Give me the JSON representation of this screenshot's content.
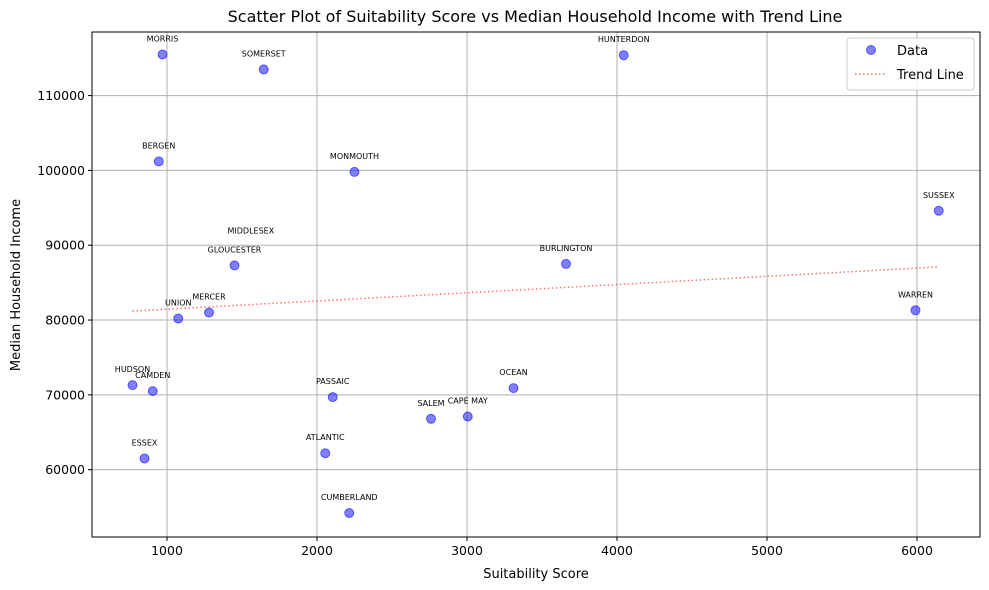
{
  "chart_data": {
    "type": "scatter",
    "title": "Scatter Plot of Suitability Score vs Median Household Income with Trend Line",
    "xlabel": "Suitability Score",
    "ylabel": "Median Household Income",
    "xlim": [
      500,
      6420
    ],
    "ylim": [
      51000,
      118500
    ],
    "xticks": [
      1000,
      2000,
      3000,
      4000,
      5000,
      6000
    ],
    "yticks": [
      60000,
      70000,
      80000,
      90000,
      100000,
      110000
    ],
    "grid": true,
    "legend": {
      "placement": "top-right",
      "entries": [
        {
          "label": "Data",
          "kind": "marker",
          "color": "#0000ff"
        },
        {
          "label": "Trend Line",
          "kind": "dotted-line",
          "color": "#ff0000"
        }
      ]
    },
    "series": [
      {
        "name": "Data",
        "color": "#0000ff",
        "points": [
          {
            "label": "MORRIS",
            "x": 970,
            "y": 115500
          },
          {
            "label": "SOMERSET",
            "x": 1645,
            "y": 113500
          },
          {
            "label": "HUNTERDON",
            "x": 4045,
            "y": 115400
          },
          {
            "label": "BERGEN",
            "x": 945,
            "y": 101200
          },
          {
            "label": "MONMOUTH",
            "x": 2250,
            "y": 99800
          },
          {
            "label": "SUSSEX",
            "x": 6145,
            "y": 94600
          },
          {
            "label": "GLOUCESTER",
            "x": 1450,
            "y": 87300
          },
          {
            "label": "BURLINGTON",
            "x": 3660,
            "y": 87500
          },
          {
            "label": "MERCER",
            "x": 1280,
            "y": 81000
          },
          {
            "label": "UNION",
            "x": 1075,
            "y": 80200
          },
          {
            "label": "WARREN",
            "x": 5990,
            "y": 81300
          },
          {
            "label": "HUDSON",
            "x": 770,
            "y": 71300
          },
          {
            "label": "CAMDEN",
            "x": 905,
            "y": 70500
          },
          {
            "label": "PASSAIC",
            "x": 2105,
            "y": 69700
          },
          {
            "label": "OCEAN",
            "x": 3310,
            "y": 70900
          },
          {
            "label": "SALEM",
            "x": 2760,
            "y": 66800
          },
          {
            "label": "CAPE MAY",
            "x": 3005,
            "y": 67100
          },
          {
            "label": "ATLANTIC",
            "x": 2055,
            "y": 62200
          },
          {
            "label": "ESSEX",
            "x": 850,
            "y": 61500
          },
          {
            "label": "CUMBERLAND",
            "x": 2215,
            "y": 54200
          }
        ]
      },
      {
        "name": "Trend Line",
        "color": "#ff0000",
        "line": [
          {
            "x": 770,
            "y": 81200
          },
          {
            "x": 6145,
            "y": 87100
          }
        ]
      }
    ],
    "annotations": [
      {
        "text": "MIDDLESEX",
        "near": "GLOUCESTER"
      }
    ]
  }
}
